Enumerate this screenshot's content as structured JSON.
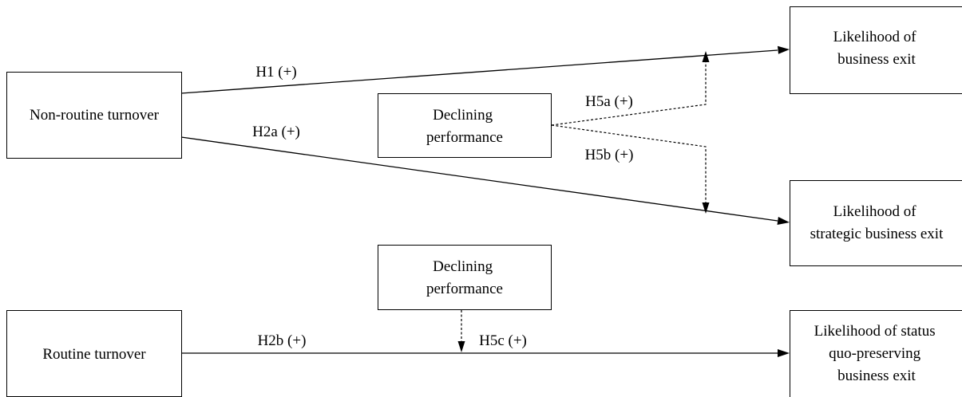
{
  "boxes": {
    "non_routine": "Non-routine turnover",
    "declining_top": [
      "Declining",
      "performance"
    ],
    "exit": [
      "Likelihood of",
      "business exit"
    ],
    "strategic_exit": [
      "Likelihood of",
      "strategic business exit"
    ],
    "declining_bottom": [
      "Declining",
      "performance"
    ],
    "routine": "Routine turnover",
    "status_quo_exit": [
      "Likelihood of status",
      "quo-preserving",
      "business exit"
    ]
  },
  "hypotheses": {
    "h1": "H1 (+)",
    "h2a": "H2a (+)",
    "h5a": "H5a (+)",
    "h5b": "H5b (+)",
    "h2b": "H2b (+)",
    "h5c": "H5c (+)"
  }
}
